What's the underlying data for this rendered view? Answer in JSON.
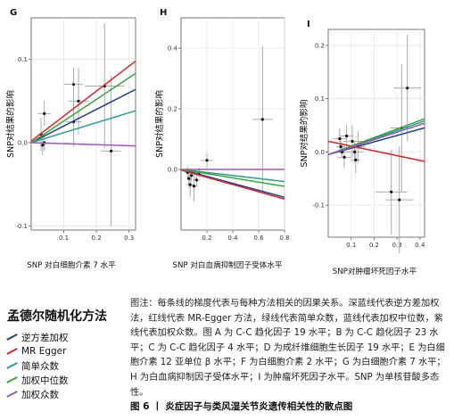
{
  "colors": {
    "ivw": "#1f3e8c",
    "egger": "#d62728",
    "median": "#2a9d8f",
    "wmedian": "#3aa33a",
    "wmode": "#9b59b6"
  },
  "legend": {
    "title": "孟德尔随机化方法",
    "items": [
      {
        "label": "逆方差加权",
        "color": "#1f3e8c"
      },
      {
        "label": "MR Egger",
        "color": "#d62728"
      },
      {
        "label": "简单众数",
        "color": "#2a9d8f"
      },
      {
        "label": "加权中位数",
        "color": "#3aa33a"
      },
      {
        "label": "加权众数",
        "color": "#9b59b6"
      }
    ]
  },
  "caption": "图注：每条线的梯度代表与每种方法相关的因果关系。深蓝线代表逆方差加权法，红线代表 MR-Egger 方法，绿线代表简单众数，蓝线代表加权中位数，紫线代表加权众数。图 A 为 C-C 趋化因子 19 水平；B 为 C-C 趋化因子 23 水平；C 为 C-C 趋化因子 4 水平；D 为成纤维细胞生长因子 19 水平；E 为白细胞介素 12 亚单位 β 水平；F 为白细胞介素 2 水平；G 为白细胞介素 7 水平；H 为白血病抑制因子受体水平；I 为肿瘤坏死因子水平。SNP 为单核苷酸多态性。",
  "figure_title": "图 6 丨 炎症因子与类风湿关节炎遗传相关性的散点图",
  "chart_data": [
    {
      "type": "scatter",
      "panel": "G",
      "xlabel": "SNP 对白细胞介素 7 水平",
      "ylabel": "SNP对结果的影响",
      "xlim": [
        0,
        0.32
      ],
      "ylim": [
        -0.105,
        0.15
      ],
      "xticks": [
        0.1,
        0.2,
        0.3
      ],
      "yticks": [
        -0.1,
        0.0,
        0.1
      ],
      "xtick_labels": [
        "0.1",
        "0.2",
        "0.3"
      ],
      "ytick_labels": [
        "-0.1",
        "0.0",
        "0.1"
      ],
      "points": [
        {
          "x": 0.03,
          "y": 0.01,
          "xerr": 0.01,
          "yerr": 0.02
        },
        {
          "x": 0.035,
          "y": -0.003,
          "xerr": 0.01,
          "yerr": 0.012
        },
        {
          "x": 0.04,
          "y": 0.0,
          "xerr": 0.012,
          "yerr": 0.01
        },
        {
          "x": 0.04,
          "y": 0.035,
          "xerr": 0.02,
          "yerr": 0.015
        },
        {
          "x": 0.13,
          "y": 0.07,
          "xerr": 0.03,
          "yerr": 0.02
        },
        {
          "x": 0.13,
          "y": 0.025,
          "xerr": 0.025,
          "yerr": 0.03
        },
        {
          "x": 0.145,
          "y": 0.05,
          "xerr": 0.03,
          "yerr": 0.04
        },
        {
          "x": 0.225,
          "y": 0.068,
          "xerr": 0.06,
          "yerr": 0.075
        },
        {
          "x": 0.245,
          "y": -0.01,
          "xerr": 0.03,
          "yerr": 0.09
        }
      ],
      "lines": [
        {
          "method": "ivw",
          "slope": 0.2
        },
        {
          "method": "egger",
          "slope": 0.3,
          "intercept": 0.002
        },
        {
          "method": "median",
          "slope": 0.12
        },
        {
          "method": "wmedian",
          "slope": 0.26
        },
        {
          "method": "wmode",
          "slope": -0.012
        }
      ]
    },
    {
      "type": "scatter",
      "panel": "H",
      "xlabel": "SNP 对白血病抑制因子受体水平",
      "ylabel": "SNP对结果的影响",
      "xlim": [
        0,
        0.8
      ],
      "ylim": [
        -0.2,
        0.5
      ],
      "xticks": [
        0.2,
        0.4,
        0.6,
        0.8
      ],
      "yticks": [
        0.0,
        0.2,
        0.4
      ],
      "xtick_labels": [
        "0.2",
        "0.4",
        "0.6",
        "0.8"
      ],
      "ytick_labels": [
        "0.0",
        "0.2",
        "0.4"
      ],
      "points": [
        {
          "x": 0.05,
          "y": -0.01,
          "xerr": 0.02,
          "yerr": 0.02
        },
        {
          "x": 0.06,
          "y": -0.03,
          "xerr": 0.02,
          "yerr": 0.03
        },
        {
          "x": 0.07,
          "y": -0.05,
          "xerr": 0.03,
          "yerr": 0.04
        },
        {
          "x": 0.08,
          "y": -0.02,
          "xerr": 0.02,
          "yerr": 0.02
        },
        {
          "x": 0.1,
          "y": -0.055,
          "xerr": 0.03,
          "yerr": 0.05
        },
        {
          "x": 0.12,
          "y": -0.035,
          "xerr": 0.03,
          "yerr": 0.02
        },
        {
          "x": 0.14,
          "y": -0.01,
          "xerr": 0.03,
          "yerr": 0.015
        },
        {
          "x": 0.2,
          "y": 0.03,
          "xerr": 0.05,
          "yerr": 0.025
        },
        {
          "x": 0.63,
          "y": 0.165,
          "xerr": 0.08,
          "yerr": 0.24
        }
      ],
      "lines": [
        {
          "method": "ivw",
          "slope": -0.115
        },
        {
          "method": "egger",
          "slope": -0.12,
          "intercept": -0.002
        },
        {
          "method": "median",
          "slope": -0.05
        },
        {
          "method": "wmedian",
          "slope": -0.07
        },
        {
          "method": "wmode",
          "slope": 0.0
        }
      ]
    },
    {
      "type": "scatter",
      "panel": "I",
      "xlabel": "SNP对肿瘤坏死因子水平",
      "ylabel": "SNP对结果的影响",
      "xlim": [
        0,
        0.42
      ],
      "ylim": [
        -0.16,
        0.23
      ],
      "xticks": [
        0.1,
        0.2,
        0.3,
        0.4
      ],
      "yticks": [
        -0.1,
        0.0,
        0.1,
        0.2
      ],
      "xtick_labels": [
        "0.1",
        "0.2",
        "0.3",
        "0.4"
      ],
      "ytick_labels": [
        "-0.1",
        "0.0",
        "0.1",
        "0.2"
      ],
      "points": [
        {
          "x": 0.05,
          "y": 0.025,
          "xerr": 0.03,
          "yerr": 0.02
        },
        {
          "x": 0.055,
          "y": 0.01,
          "xerr": 0.02,
          "yerr": 0.015
        },
        {
          "x": 0.06,
          "y": 0.0,
          "xerr": 0.03,
          "yerr": 0.01
        },
        {
          "x": 0.07,
          "y": -0.01,
          "xerr": 0.03,
          "yerr": 0.02
        },
        {
          "x": 0.08,
          "y": 0.03,
          "xerr": 0.03,
          "yerr": 0.02
        },
        {
          "x": 0.105,
          "y": 0.02,
          "xerr": 0.04,
          "yerr": 0.03
        },
        {
          "x": 0.115,
          "y": 0.0,
          "xerr": 0.035,
          "yerr": 0.02
        },
        {
          "x": 0.12,
          "y": -0.015,
          "xerr": 0.02,
          "yerr": 0.025
        },
        {
          "x": 0.13,
          "y": 0.01,
          "xerr": 0.03,
          "yerr": 0.03
        },
        {
          "x": 0.275,
          "y": -0.075,
          "xerr": 0.07,
          "yerr": 0.08
        },
        {
          "x": 0.31,
          "y": -0.09,
          "xerr": 0.06,
          "yerr": 0.1
        },
        {
          "x": 0.32,
          "y": 0.045,
          "xerr": 0.05,
          "yerr": 0.12
        },
        {
          "x": 0.345,
          "y": 0.12,
          "xerr": 0.06,
          "yerr": 0.1
        }
      ],
      "lines": [
        {
          "method": "ivw",
          "slope": 0.12,
          "intercept": -0.005
        },
        {
          "method": "egger",
          "slope": -0.09,
          "intercept": 0.02
        },
        {
          "method": "median",
          "slope": 0.15,
          "intercept": -0.005
        },
        {
          "method": "wmedian",
          "slope": 0.16,
          "intercept": -0.005
        },
        {
          "method": "wmode",
          "slope": 0.14,
          "intercept": -0.005
        }
      ]
    }
  ]
}
